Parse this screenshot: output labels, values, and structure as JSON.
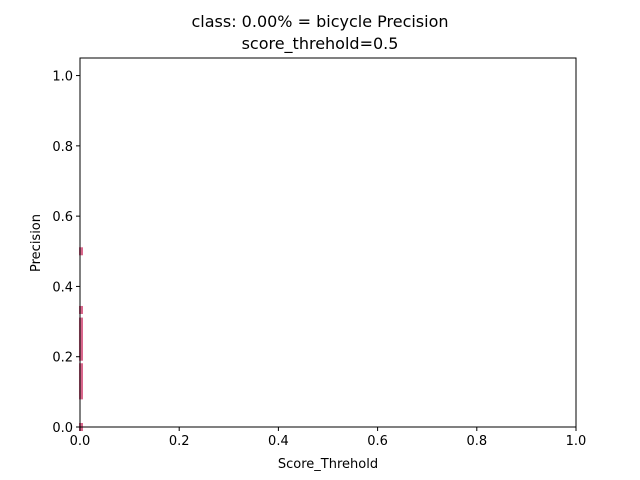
{
  "chart_data": {
    "type": "scatter",
    "title": [
      "class: 0.00% = bicycle Precision",
      "score_threhold=0.5"
    ],
    "xlabel": "Score_Threhold",
    "ylabel": "Precision",
    "xlim": [
      0.0,
      1.0
    ],
    "ylim": [
      0.0,
      1.05
    ],
    "xticks": [
      "0.0",
      "0.2",
      "0.4",
      "0.6",
      "0.8",
      "1.0"
    ],
    "yticks": [
      "0.0",
      "0.2",
      "0.4",
      "0.6",
      "0.8",
      "1.0"
    ],
    "grid": false,
    "color": "#d9678c",
    "x": [
      0.002,
      0.002,
      0.002,
      0.002,
      0.002,
      0.002,
      0.002,
      0.002,
      0.002,
      0.002,
      0.002,
      0.002,
      0.002,
      0.002,
      0.002,
      0.002,
      0.002,
      0.002,
      0.002,
      0.002,
      0.002,
      0.002,
      0.002,
      0.002,
      0.002,
      0.002,
      0.002,
      0.002,
      0.002,
      0.002
    ],
    "y": [
      0.5,
      0.333,
      0.3,
      0.29,
      0.28,
      0.27,
      0.26,
      0.25,
      0.24,
      0.23,
      0.22,
      0.21,
      0.2,
      0.17,
      0.16,
      0.15,
      0.14,
      0.13,
      0.12,
      0.11,
      0.1,
      0.09,
      0.0,
      0.295,
      0.285,
      0.275,
      0.265,
      0.255,
      0.245,
      0.235
    ]
  }
}
